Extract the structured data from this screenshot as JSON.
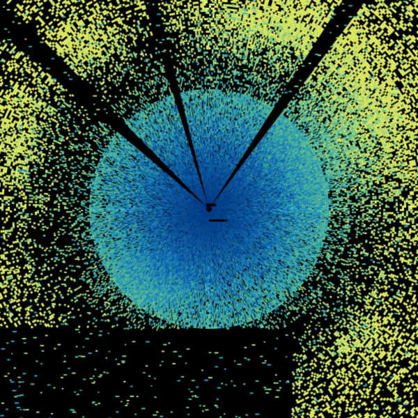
{
  "image": {
    "kind": "radar-reflectivity-sweep",
    "background_color": "#000000",
    "colormap": [
      "#0b5fc0",
      "#1a86cc",
      "#2fa8c0",
      "#4fc0a6",
      "#7ed08e",
      "#b4e07a",
      "#e4f064"
    ]
  }
}
